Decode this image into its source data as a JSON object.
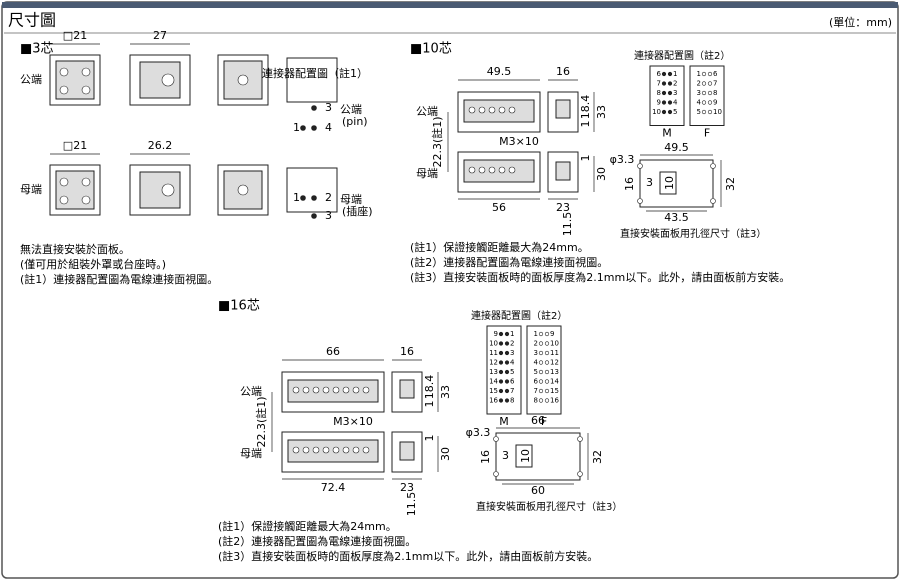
{
  "header": {
    "title": "尺寸圖",
    "unit": "(單位：mm)"
  },
  "c3": {
    "heading": "■3芯",
    "male_label": "公端",
    "female_label": "母端",
    "male_square": "□21",
    "male_depth": "27",
    "female_square": "□21",
    "female_depth": "26.2",
    "layout_title": "連接器配置圖（註1）",
    "male_pin_label": [
      "公端",
      "(pin)"
    ],
    "female_pin_label": [
      "母端",
      "(插座)"
    ],
    "male_pins": [
      "3",
      "1",
      "4"
    ],
    "female_pins": [
      "1",
      "2",
      "3"
    ],
    "notes": [
      "無法直接安裝於面板。",
      "(僅可用於組裝外罩或台座時。)",
      "(註1）連接器配置圖為電線連接面視圖。"
    ]
  },
  "c10": {
    "heading": "■10芯",
    "male_label": "公端",
    "female_label": "母端",
    "width_top": "49.5",
    "depth_top": "16",
    "h18": "18.4",
    "h33": "33",
    "one_a": "1",
    "pitch": "22.3(註1)",
    "screw": "M3×10",
    "width_bottom": "56",
    "depth_bottom": "23",
    "h11": "11.5",
    "h30": "30",
    "one_b": "1",
    "layout_title": "連接器配置圖（註2）",
    "m": "M",
    "f": "F",
    "m_rows": [
      [
        "6",
        "1"
      ],
      [
        "7",
        "2"
      ],
      [
        "8",
        "3"
      ],
      [
        "9",
        "4"
      ],
      [
        "10",
        "5"
      ]
    ],
    "f_rows": [
      [
        "1",
        "6"
      ],
      [
        "2",
        "7"
      ],
      [
        "3",
        "8"
      ],
      [
        "4",
        "9"
      ],
      [
        "5",
        "10"
      ]
    ],
    "panel": {
      "hole": "φ3.3",
      "outer": "49.5",
      "h16": "16",
      "h3": "3",
      "h10": "10",
      "h32": "32",
      "inner": "43.5",
      "caption": "直接安裝面板用孔徑尺寸（註3）"
    },
    "notes": [
      "(註1）保證接觸距離最大為24mm。",
      "(註2）連接器配置圖為電線連接面視圖。",
      "(註3）直接安裝面板時的面板厚度為2.1mm以下。此外，請由面板前方安裝。"
    ]
  },
  "c16": {
    "heading": "■16芯",
    "male_label": "公端",
    "female_label": "母端",
    "width_top": "66",
    "depth_top": "16",
    "h18": "18.4",
    "h33": "33",
    "one_a": "1",
    "pitch": "22.3(註1)",
    "screw": "M3×10",
    "width_bottom": "72.4",
    "depth_bottom": "23",
    "h11": "11.5",
    "h30": "30",
    "one_b": "1",
    "layout_title": "連接器配置圖（註2）",
    "m": "M",
    "f": "F",
    "m_rows": [
      [
        "9",
        "1"
      ],
      [
        "10",
        "2"
      ],
      [
        "11",
        "3"
      ],
      [
        "12",
        "4"
      ],
      [
        "13",
        "5"
      ],
      [
        "14",
        "6"
      ],
      [
        "15",
        "7"
      ],
      [
        "16",
        "8"
      ]
    ],
    "f_rows": [
      [
        "1",
        "9"
      ],
      [
        "2",
        "10"
      ],
      [
        "3",
        "11"
      ],
      [
        "4",
        "12"
      ],
      [
        "5",
        "13"
      ],
      [
        "6",
        "14"
      ],
      [
        "7",
        "15"
      ],
      [
        "8",
        "16"
      ]
    ],
    "panel": {
      "hole": "φ3.3",
      "outer": "66",
      "h16": "16",
      "h3": "3",
      "h10": "10",
      "h32": "32",
      "inner": "60",
      "caption": "直接安裝面板用孔徑尺寸（註3）"
    },
    "notes": [
      "(註1）保證接觸距離最大為24mm。",
      "(註2）連接器配置圖為電線連接面視圖。",
      "(註3）直接安裝面板時的面板厚度為2.1mm以下。此外，請由面板前方安裝。"
    ]
  }
}
